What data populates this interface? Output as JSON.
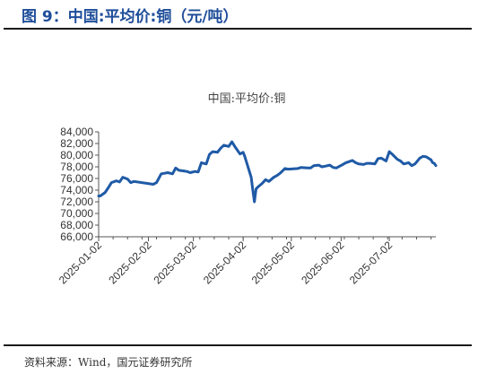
{
  "figure_title": "图 9：中国:平均价:铜（元/吨）",
  "source_note": "资料来源：Wind，国元证券研究所",
  "colors": {
    "title": "#1f4e9a",
    "line": "#1f5aa6",
    "axis": "#555555",
    "text": "#444444"
  },
  "chart_data": {
    "type": "line",
    "title": "中国:平均价:铜",
    "xlabel": "",
    "ylabel": "",
    "ylim": [
      66000,
      84000
    ],
    "yticks": [
      66000,
      68000,
      70000,
      72000,
      74000,
      76000,
      78000,
      80000,
      82000,
      84000
    ],
    "ytick_labels": [
      "66,000",
      "68,000",
      "70,000",
      "72,000",
      "74,000",
      "76,000",
      "78,000",
      "80,000",
      "82,000",
      "84,000"
    ],
    "xlim": [
      "2025-01-02",
      "2025-07-31"
    ],
    "xtick_labels": [
      "2025-01-02",
      "2025-02-02",
      "2025-03-02",
      "2025-04-02",
      "2025-05-02",
      "2025-06-02",
      "2025-07-02"
    ],
    "grid": false,
    "series": [
      {
        "x": [
          "2025-01-02",
          "2025-01-03",
          "2025-01-06",
          "2025-01-08",
          "2025-01-10",
          "2025-01-13",
          "2025-01-15",
          "2025-01-17",
          "2025-01-20",
          "2025-01-22",
          "2025-01-24",
          "2025-02-05",
          "2025-02-07",
          "2025-02-10",
          "2025-02-12",
          "2025-02-14",
          "2025-02-17",
          "2025-02-19",
          "2025-02-21",
          "2025-02-24",
          "2025-02-26",
          "2025-02-28",
          "2025-03-03",
          "2025-03-05",
          "2025-03-07",
          "2025-03-10",
          "2025-03-12",
          "2025-03-14",
          "2025-03-17",
          "2025-03-19",
          "2025-03-21",
          "2025-03-24",
          "2025-03-26",
          "2025-03-28",
          "2025-03-31",
          "2025-04-02",
          "2025-04-03",
          "2025-04-07",
          "2025-04-08",
          "2025-04-09",
          "2025-04-10",
          "2025-04-11",
          "2025-04-14",
          "2025-04-16",
          "2025-04-18",
          "2025-04-21",
          "2025-04-23",
          "2025-04-25",
          "2025-04-28",
          "2025-04-30",
          "2025-05-06",
          "2025-05-08",
          "2025-05-12",
          "2025-05-14",
          "2025-05-16",
          "2025-05-19",
          "2025-05-21",
          "2025-05-23",
          "2025-05-26",
          "2025-05-28",
          "2025-05-30",
          "2025-06-03",
          "2025-06-05",
          "2025-06-09",
          "2025-06-11",
          "2025-06-13",
          "2025-06-16",
          "2025-06-18",
          "2025-06-20",
          "2025-06-23",
          "2025-06-25",
          "2025-06-27",
          "2025-06-30",
          "2025-07-02",
          "2025-07-04",
          "2025-07-07",
          "2025-07-09",
          "2025-07-11",
          "2025-07-14",
          "2025-07-16",
          "2025-07-18",
          "2025-07-21",
          "2025-07-23",
          "2025-07-25",
          "2025-07-28",
          "2025-07-29",
          "2025-07-30",
          "2025-07-31"
        ],
        "y": [
          73000,
          73000,
          73600,
          74400,
          75300,
          75600,
          75400,
          76200,
          75900,
          75300,
          75500,
          75000,
          75300,
          76800,
          76900,
          77000,
          76800,
          77800,
          77400,
          77300,
          77200,
          77000,
          77200,
          77100,
          78700,
          78500,
          80100,
          80600,
          80500,
          81200,
          81700,
          81500,
          82300,
          81400,
          80200,
          80500,
          79800,
          76200,
          74000,
          72000,
          74200,
          74500,
          75200,
          75800,
          75500,
          76200,
          76500,
          76900,
          77700,
          77600,
          77700,
          77900,
          77800,
          77800,
          78200,
          78300,
          78000,
          78100,
          78300,
          77900,
          77800,
          78400,
          78700,
          79100,
          78700,
          78500,
          78400,
          78600,
          78600,
          78500,
          79400,
          79500,
          79000,
          80600,
          80100,
          79300,
          79000,
          78500,
          78700,
          78200,
          78500,
          79500,
          79800,
          79700,
          79200,
          78700,
          78600,
          78200
        ]
      }
    ]
  }
}
